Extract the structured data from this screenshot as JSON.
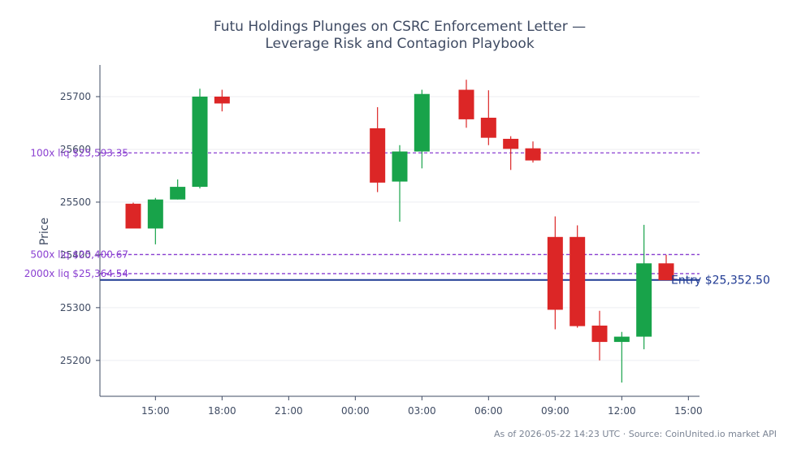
{
  "chart_data": {
    "type": "candlestick",
    "title_lines": [
      "Futu Holdings Plunges on CSRC Enforcement Letter —",
      "Leverage Risk and Contagion Playbook"
    ],
    "ylabel": "Price",
    "xlabel": "",
    "ylim": [
      25132,
      25760
    ],
    "y_ticks": [
      25200,
      25300,
      25400,
      25500,
      25600,
      25700
    ],
    "x_ticks": [
      "15:00",
      "18:00",
      "21:00",
      "00:00",
      "03:00",
      "06:00",
      "09:00",
      "12:00",
      "15:00"
    ],
    "x_tick_hours": [
      15,
      18,
      21,
      24,
      27,
      30,
      33,
      36,
      39
    ],
    "x_range_hours": [
      12.5,
      39.5
    ],
    "grid": true,
    "colors": {
      "up": "#18a34a",
      "down": "#dc2626",
      "liq": "#8a3fd1",
      "entry": "#1f3a93"
    },
    "candles": [
      {
        "t": 14,
        "open": 25497,
        "high": 25499,
        "low": 25452,
        "close": 25450
      },
      {
        "t": 15,
        "open": 25450,
        "high": 25508,
        "low": 25420,
        "close": 25505
      },
      {
        "t": 16,
        "open": 25505,
        "high": 25543,
        "low": 25505,
        "close": 25529
      },
      {
        "t": 17,
        "open": 25529,
        "high": 25715,
        "low": 25526,
        "close": 25700
      },
      {
        "t": 18,
        "open": 25700,
        "high": 25713,
        "low": 25672,
        "close": 25687
      },
      {
        "t": 25,
        "open": 25640,
        "high": 25680,
        "low": 25519,
        "close": 25537
      },
      {
        "t": 26,
        "open": 25539,
        "high": 25608,
        "low": 25463,
        "close": 25596
      },
      {
        "t": 27,
        "open": 25596,
        "high": 25713,
        "low": 25564,
        "close": 25705
      },
      {
        "t": 29,
        "open": 25713,
        "high": 25732,
        "low": 25641,
        "close": 25657
      },
      {
        "t": 30,
        "open": 25660,
        "high": 25712,
        "low": 25608,
        "close": 25622
      },
      {
        "t": 31,
        "open": 25620,
        "high": 25625,
        "low": 25561,
        "close": 25601
      },
      {
        "t": 32,
        "open": 25602,
        "high": 25615,
        "low": 25575,
        "close": 25579
      },
      {
        "t": 33,
        "open": 25434,
        "high": 25473,
        "low": 25259,
        "close": 25296
      },
      {
        "t": 34,
        "open": 25434,
        "high": 25456,
        "low": 25262,
        "close": 25265
      },
      {
        "t": 35,
        "open": 25266,
        "high": 25294,
        "low": 25200,
        "close": 25235
      },
      {
        "t": 36,
        "open": 25235,
        "high": 25254,
        "low": 25158,
        "close": 25245
      },
      {
        "t": 37,
        "open": 25245,
        "high": 25457,
        "low": 25221,
        "close": 25384
      },
      {
        "t": 38,
        "open": 25384,
        "high": 25400,
        "low": 25352,
        "close": 25352
      }
    ],
    "liq_lines": [
      {
        "label": "100x liq $25,593.35",
        "value": 25593.35
      },
      {
        "label": "500x liq $25,400.67",
        "value": 25400.67
      },
      {
        "label": "2000x liq $25,364.54",
        "value": 25364.54
      }
    ],
    "entry": {
      "label": "Entry $25,352.50",
      "value": 25352.5
    }
  },
  "footer": "As of 2026-05-22 14:23 UTC · Source: CoinUnited.io market API"
}
